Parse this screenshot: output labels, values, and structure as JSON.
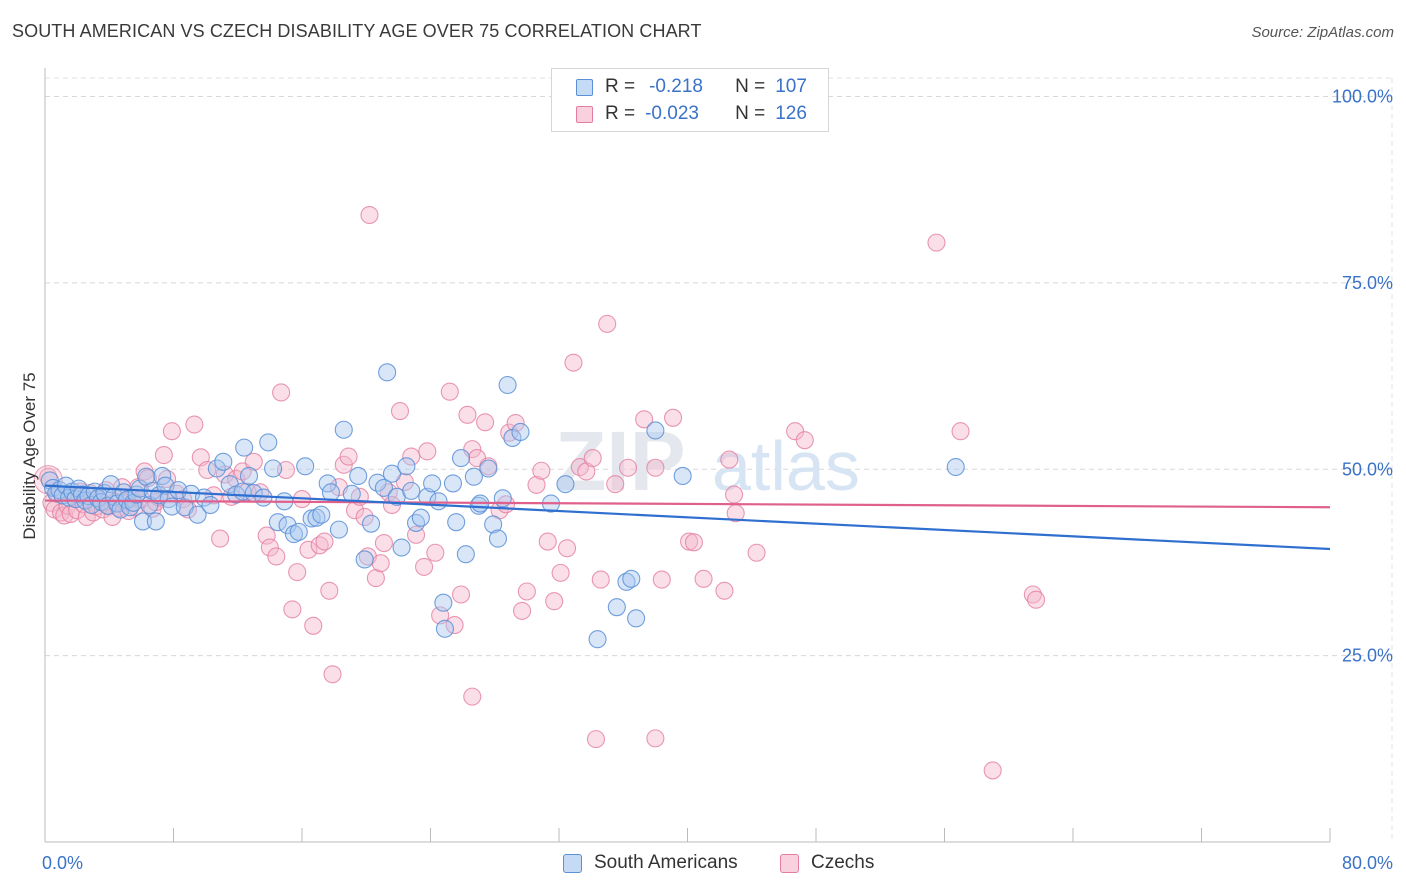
{
  "header": {
    "title": "SOUTH AMERICAN VS CZECH DISABILITY AGE OVER 75 CORRELATION CHART",
    "source": "Source: ZipAtlas.com"
  },
  "legend": {
    "r_label": "R =",
    "n_label": "N =",
    "series": [
      {
        "r": "-0.218",
        "n": "107"
      },
      {
        "r": "-0.023",
        "n": "126"
      }
    ]
  },
  "watermark": {
    "zip": "ZIP",
    "atlas": "atlas"
  },
  "colors": {
    "blue_fill": "#a9c8f0",
    "blue_stroke": "#5b8fd6",
    "blue_line": "#2f6fd0",
    "pink_fill": "#f5b8cb",
    "pink_stroke": "#e47ea0",
    "pink_line": "#e0608c",
    "axis_text": "#3a72c8"
  },
  "chart_data": {
    "type": "scatter",
    "title": "SOUTH AMERICAN VS CZECH DISABILITY AGE OVER 75 CORRELATION CHART",
    "xlabel": "",
    "ylabel": "Disability Age Over 75",
    "xlim": [
      0,
      80
    ],
    "ylim": [
      0,
      105
    ],
    "x_tick_labels": [
      "0.0%",
      "80.0%"
    ],
    "y_ticks": [
      {
        "value": 100,
        "label": "100.0%"
      },
      {
        "value": 75,
        "label": "75.0%"
      },
      {
        "value": 50,
        "label": "50.0%"
      },
      {
        "value": 25,
        "label": "25.0%"
      }
    ],
    "grid": true,
    "legend_position": "top-center",
    "series": [
      {
        "name": "South Americans",
        "r": -0.218,
        "n": 107,
        "trend": {
          "x": [
            0,
            80
          ],
          "y": [
            47.8,
            39.3
          ]
        },
        "points": [
          [
            0.3,
            48.5
          ],
          [
            0.5,
            47.5
          ],
          [
            0.7,
            46.8
          ],
          [
            0.9,
            47.2
          ],
          [
            1.1,
            46.5
          ],
          [
            1.3,
            47.8
          ],
          [
            1.5,
            46.2
          ],
          [
            1.7,
            47.0
          ],
          [
            1.9,
            46.0
          ],
          [
            2.1,
            47.4
          ],
          [
            2.3,
            46.6
          ],
          [
            2.5,
            45.8
          ],
          [
            2.7,
            46.4
          ],
          [
            2.9,
            45.2
          ],
          [
            3.1,
            47.0
          ],
          [
            3.3,
            46.1
          ],
          [
            3.5,
            45.6
          ],
          [
            3.7,
            46.8
          ],
          [
            3.9,
            45.1
          ],
          [
            4.1,
            48.0
          ],
          [
            4.3,
            46.3
          ],
          [
            4.5,
            45.4
          ],
          [
            4.7,
            44.6
          ],
          [
            4.9,
            46.9
          ],
          [
            5.1,
            45.9
          ],
          [
            5.3,
            44.9
          ],
          [
            5.5,
            45.5
          ],
          [
            5.7,
            46.6
          ],
          [
            5.9,
            47.4
          ],
          [
            6.1,
            43.0
          ],
          [
            6.3,
            49.0
          ],
          [
            6.5,
            45.2
          ],
          [
            6.7,
            47.1
          ],
          [
            6.9,
            43.0
          ],
          [
            7.1,
            46.5
          ],
          [
            7.3,
            49.1
          ],
          [
            7.5,
            47.8
          ],
          [
            7.7,
            46.0
          ],
          [
            7.9,
            45.0
          ],
          [
            8.3,
            47.2
          ],
          [
            8.7,
            44.9
          ],
          [
            9.1,
            46.7
          ],
          [
            9.5,
            43.9
          ],
          [
            9.9,
            46.2
          ],
          [
            10.3,
            45.2
          ],
          [
            10.7,
            50.1
          ],
          [
            11.1,
            51.0
          ],
          [
            11.5,
            48.0
          ],
          [
            11.9,
            46.6
          ],
          [
            12.3,
            47.0
          ],
          [
            12.4,
            52.9
          ],
          [
            12.7,
            49.1
          ],
          [
            13.0,
            46.8
          ],
          [
            13.6,
            46.2
          ],
          [
            13.9,
            53.6
          ],
          [
            14.2,
            50.1
          ],
          [
            14.5,
            42.9
          ],
          [
            14.9,
            45.7
          ],
          [
            15.1,
            42.5
          ],
          [
            15.5,
            41.3
          ],
          [
            15.8,
            41.6
          ],
          [
            16.2,
            50.4
          ],
          [
            16.6,
            43.4
          ],
          [
            16.9,
            43.5
          ],
          [
            17.2,
            43.9
          ],
          [
            17.6,
            48.1
          ],
          [
            17.8,
            46.9
          ],
          [
            18.3,
            41.9
          ],
          [
            18.6,
            55.3
          ],
          [
            19.1,
            46.7
          ],
          [
            19.5,
            49.1
          ],
          [
            19.9,
            37.9
          ],
          [
            20.3,
            42.7
          ],
          [
            20.7,
            48.2
          ],
          [
            21.1,
            47.5
          ],
          [
            21.3,
            63.0
          ],
          [
            21.6,
            49.4
          ],
          [
            21.9,
            46.3
          ],
          [
            22.2,
            39.5
          ],
          [
            22.5,
            50.4
          ],
          [
            22.8,
            47.1
          ],
          [
            23.1,
            42.8
          ],
          [
            23.4,
            43.5
          ],
          [
            23.8,
            46.3
          ],
          [
            24.1,
            48.1
          ],
          [
            24.5,
            45.7
          ],
          [
            24.8,
            32.1
          ],
          [
            24.9,
            28.6
          ],
          [
            25.4,
            48.1
          ],
          [
            25.6,
            42.9
          ],
          [
            25.9,
            51.5
          ],
          [
            26.2,
            38.6
          ],
          [
            26.7,
            49.0
          ],
          [
            27.0,
            45.1
          ],
          [
            27.1,
            45.4
          ],
          [
            27.6,
            50.1
          ],
          [
            27.9,
            42.6
          ],
          [
            28.2,
            40.7
          ],
          [
            28.5,
            46.1
          ],
          [
            28.8,
            61.3
          ],
          [
            29.1,
            54.2
          ],
          [
            29.6,
            55.0
          ],
          [
            31.5,
            45.4
          ],
          [
            32.4,
            48.0
          ],
          [
            34.4,
            27.2
          ],
          [
            35.6,
            31.5
          ],
          [
            36.2,
            34.9
          ],
          [
            36.5,
            35.3
          ],
          [
            36.8,
            30.0
          ],
          [
            38.0,
            55.2
          ],
          [
            39.7,
            49.1
          ],
          [
            56.7,
            50.3
          ]
        ]
      },
      {
        "name": "Czechs",
        "r": -0.023,
        "n": 126,
        "trend": {
          "x": [
            0,
            80
          ],
          "y": [
            45.8,
            44.9
          ]
        },
        "points": [
          [
            0.2,
            49.0
          ],
          [
            0.4,
            45.5
          ],
          [
            0.6,
            44.6
          ],
          [
            0.8,
            46.7
          ],
          [
            1.0,
            44.2
          ],
          [
            1.2,
            43.8
          ],
          [
            1.4,
            45.1
          ],
          [
            1.6,
            44.0
          ],
          [
            1.8,
            46.2
          ],
          [
            2.0,
            44.5
          ],
          [
            2.2,
            47.0
          ],
          [
            2.4,
            45.3
          ],
          [
            2.6,
            43.6
          ],
          [
            2.8,
            46.8
          ],
          [
            3.0,
            44.2
          ],
          [
            3.2,
            45.0
          ],
          [
            3.4,
            45.9
          ],
          [
            3.6,
            44.6
          ],
          [
            3.8,
            47.2
          ],
          [
            4.0,
            45.0
          ],
          [
            4.2,
            43.6
          ],
          [
            4.4,
            45.6
          ],
          [
            4.6,
            44.8
          ],
          [
            4.8,
            47.6
          ],
          [
            5.0,
            45.7
          ],
          [
            5.2,
            44.4
          ],
          [
            5.4,
            46.1
          ],
          [
            5.6,
            44.9
          ],
          [
            5.8,
            47.6
          ],
          [
            6.0,
            46.0
          ],
          [
            6.2,
            49.7
          ],
          [
            6.4,
            48.8
          ],
          [
            6.7,
            44.7
          ],
          [
            6.9,
            45.6
          ],
          [
            7.1,
            46.2
          ],
          [
            7.4,
            51.9
          ],
          [
            7.6,
            48.7
          ],
          [
            7.9,
            55.1
          ],
          [
            8.2,
            46.7
          ],
          [
            8.6,
            46.0
          ],
          [
            8.9,
            44.6
          ],
          [
            9.3,
            56.0
          ],
          [
            9.7,
            51.6
          ],
          [
            10.1,
            49.9
          ],
          [
            10.5,
            46.5
          ],
          [
            10.9,
            40.7
          ],
          [
            11.2,
            49.3
          ],
          [
            11.6,
            46.3
          ],
          [
            11.9,
            48.7
          ],
          [
            12.3,
            49.7
          ],
          [
            12.6,
            47.0
          ],
          [
            13.0,
            51.0
          ],
          [
            13.4,
            46.9
          ],
          [
            13.8,
            41.1
          ],
          [
            14.0,
            39.5
          ],
          [
            14.4,
            38.3
          ],
          [
            14.7,
            60.3
          ],
          [
            15.0,
            49.9
          ],
          [
            15.4,
            31.2
          ],
          [
            15.7,
            36.2
          ],
          [
            16.0,
            46.0
          ],
          [
            16.4,
            39.2
          ],
          [
            16.7,
            29.0
          ],
          [
            17.1,
            39.8
          ],
          [
            17.4,
            40.3
          ],
          [
            17.7,
            33.7
          ],
          [
            17.9,
            22.5
          ],
          [
            18.3,
            47.6
          ],
          [
            18.6,
            50.6
          ],
          [
            18.9,
            51.7
          ],
          [
            19.3,
            44.5
          ],
          [
            19.6,
            46.3
          ],
          [
            19.9,
            43.6
          ],
          [
            20.1,
            38.3
          ],
          [
            20.2,
            84.1
          ],
          [
            20.6,
            35.4
          ],
          [
            20.9,
            37.4
          ],
          [
            21.1,
            40.1
          ],
          [
            21.4,
            46.9
          ],
          [
            21.6,
            45.2
          ],
          [
            22.1,
            57.8
          ],
          [
            22.4,
            48.3
          ],
          [
            22.8,
            51.7
          ],
          [
            23.1,
            41.2
          ],
          [
            23.6,
            36.9
          ],
          [
            23.8,
            52.4
          ],
          [
            24.3,
            38.8
          ],
          [
            24.6,
            30.4
          ],
          [
            25.2,
            60.4
          ],
          [
            25.5,
            29.1
          ],
          [
            25.9,
            33.2
          ],
          [
            26.3,
            57.3
          ],
          [
            26.6,
            52.7
          ],
          [
            26.9,
            51.5
          ],
          [
            27.4,
            56.3
          ],
          [
            27.6,
            50.4
          ],
          [
            28.3,
            44.5
          ],
          [
            28.7,
            45.3
          ],
          [
            28.9,
            54.9
          ],
          [
            29.3,
            56.2
          ],
          [
            29.7,
            31.0
          ],
          [
            30.0,
            33.6
          ],
          [
            30.6,
            47.9
          ],
          [
            30.9,
            49.8
          ],
          [
            31.3,
            40.3
          ],
          [
            31.7,
            32.3
          ],
          [
            32.1,
            36.1
          ],
          [
            32.5,
            39.4
          ],
          [
            32.9,
            64.3
          ],
          [
            33.3,
            50.3
          ],
          [
            33.7,
            49.7
          ],
          [
            34.1,
            51.5
          ],
          [
            34.6,
            35.2
          ],
          [
            35.0,
            69.5
          ],
          [
            35.5,
            48.0
          ],
          [
            36.3,
            50.2
          ],
          [
            37.3,
            56.7
          ],
          [
            38.0,
            50.2
          ],
          [
            38.4,
            35.2
          ],
          [
            39.1,
            56.9
          ],
          [
            40.1,
            40.3
          ],
          [
            40.4,
            40.2
          ],
          [
            41.0,
            35.3
          ],
          [
            42.3,
            33.7
          ],
          [
            42.6,
            51.3
          ],
          [
            42.9,
            46.6
          ],
          [
            43.0,
            44.1
          ],
          [
            44.3,
            38.8
          ],
          [
            46.7,
            55.1
          ],
          [
            47.3,
            53.9
          ],
          [
            55.5,
            80.4
          ],
          [
            57.0,
            55.1
          ],
          [
            59.0,
            9.6
          ],
          [
            61.5,
            33.2
          ],
          [
            61.7,
            32.5
          ],
          [
            38.0,
            13.9
          ],
          [
            26.6,
            19.5
          ],
          [
            34.3,
            13.8
          ]
        ]
      }
    ]
  },
  "bottom_legend": [
    "South Americans",
    "Czechs"
  ]
}
